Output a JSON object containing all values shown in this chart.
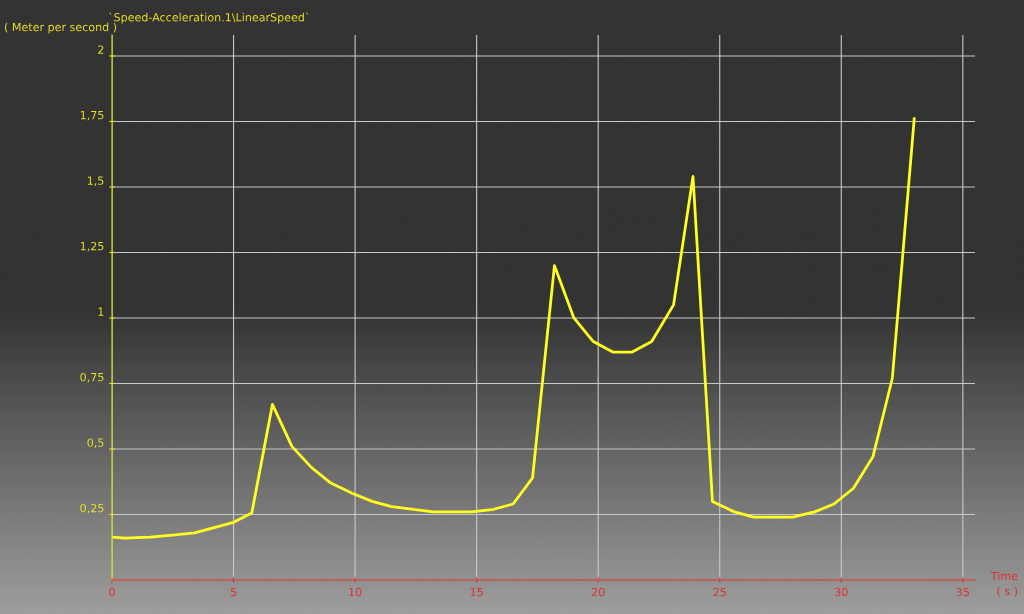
{
  "chart_data": {
    "type": "line",
    "title": "`Speed-Acceleration.1\\LinearSpeed`",
    "ylabel": "( Meter per second )",
    "xlabel": "Time",
    "annotations": [
      "( s )"
    ],
    "x": [
      0,
      0.53,
      1.56,
      2.6,
      3.4,
      4.2,
      5,
      5.75,
      6.6,
      7.4,
      8.2,
      9.0,
      9.9,
      10.7,
      11.5,
      12.4,
      13.2,
      14,
      14.8,
      15.7,
      16.5,
      17.3,
      18.2,
      19.0,
      19.8,
      20.6,
      21.4,
      22.2,
      23.1,
      23.9,
      24.7,
      25.6,
      26.4,
      27.2,
      28.0,
      28.9,
      29.7,
      30.5,
      31.3,
      32.1,
      33.0
    ],
    "series": [
      {
        "color": "#ffff20",
        "values": [
          0.164,
          0.16,
          0.164,
          0.172,
          0.18,
          0.2,
          0.22,
          0.256,
          0.67,
          0.51,
          0.43,
          0.37,
          0.33,
          0.3,
          0.28,
          0.27,
          0.26,
          0.26,
          0.26,
          0.27,
          0.29,
          0.39,
          1.2,
          1.0,
          0.91,
          0.87,
          0.87,
          0.91,
          1.05,
          1.54,
          0.3,
          0.26,
          0.24,
          0.24,
          0.24,
          0.26,
          0.29,
          0.35,
          0.47,
          0.77,
          1.76
        ]
      }
    ],
    "xlim": [
      0,
      35.5
    ],
    "ylim": [
      0,
      2.08
    ],
    "xticks": [
      0,
      5,
      10,
      15,
      20,
      25,
      30,
      35
    ],
    "yticks": [
      {
        "value": 0.25,
        "label": "0,25"
      },
      {
        "value": 0.5,
        "label": "0,5"
      },
      {
        "value": 0.75,
        "label": "0,75"
      },
      {
        "value": 1,
        "label": "1"
      },
      {
        "value": 1.25,
        "label": "1,25"
      },
      {
        "value": 1.5,
        "label": "1,5"
      },
      {
        "value": 1.75,
        "label": "1,75"
      },
      {
        "value": 2,
        "label": "2"
      }
    ],
    "grid": true,
    "line_style": "solid",
    "marker": "none"
  }
}
